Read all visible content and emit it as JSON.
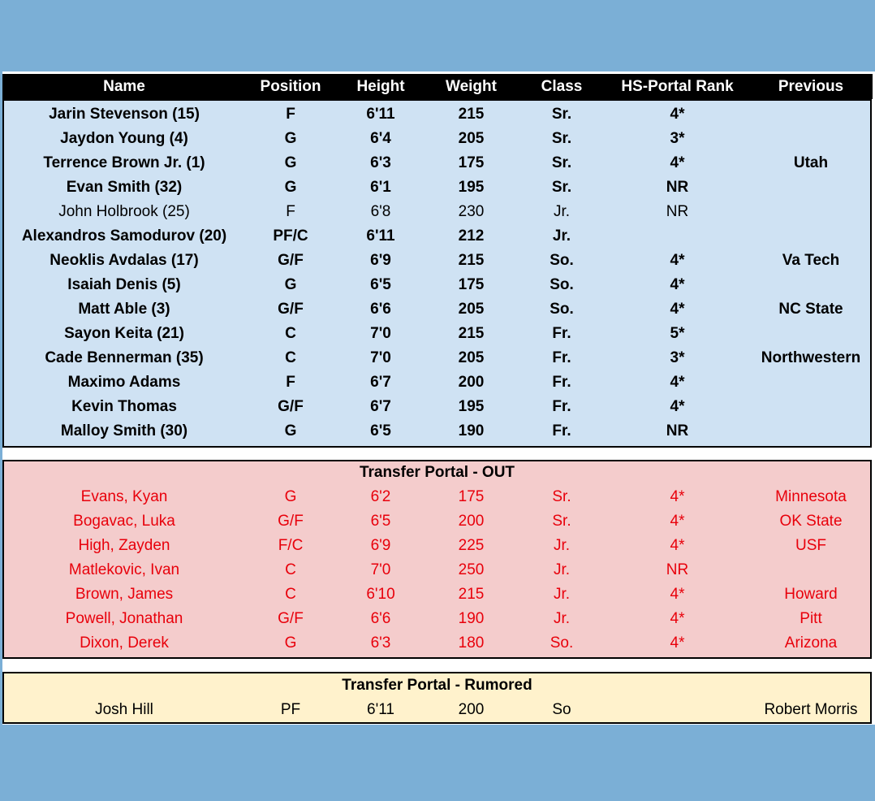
{
  "table": {
    "columns": [
      "Name",
      "Position",
      "Height",
      "Weight",
      "Class",
      "HS-Portal Rank",
      "Previous"
    ],
    "roster": {
      "rows": [
        {
          "cells": [
            "Jarin Stevenson (15)",
            "F",
            "6'11",
            "215",
            "Sr.",
            "4*",
            null
          ]
        },
        {
          "cells": [
            "Jaydon Young (4)",
            "G",
            "6'4",
            "205",
            "Sr.",
            "3*",
            null
          ]
        },
        {
          "cells": [
            "Terrence Brown Jr. (1)",
            "G",
            "6'3",
            "175",
            "Sr.",
            "4*",
            "Utah"
          ]
        },
        {
          "cells": [
            "Evan Smith (32)",
            "G",
            "6'1",
            "195",
            "Sr.",
            "NR",
            null
          ]
        },
        {
          "cells": [
            "John Holbrook (25)",
            "F",
            "6'8",
            "230",
            "Jr.",
            "NR",
            null
          ],
          "bold": false
        },
        {
          "cells": [
            "Alexandros Samodurov (20)",
            "PF/C",
            "6'11",
            "212",
            "Jr.",
            null,
            null
          ]
        },
        {
          "cells": [
            "Neoklis Avdalas (17)",
            "G/F",
            "6'9",
            "215",
            "So.",
            "4*",
            "Va Tech"
          ]
        },
        {
          "cells": [
            "Isaiah Denis (5)",
            "G",
            "6'5",
            "175",
            "So.",
            "4*",
            null
          ]
        },
        {
          "cells": [
            "Matt Able (3)",
            "G/F",
            "6'6",
            "205",
            "So.",
            "4*",
            "NC State"
          ]
        },
        {
          "cells": [
            "Sayon Keita (21)",
            "C",
            "7'0",
            "215",
            "Fr.",
            "5*",
            null
          ]
        },
        {
          "cells": [
            "Cade Bennerman (35)",
            "C",
            "7'0",
            "205",
            "Fr.",
            "3*",
            "Northwestern"
          ]
        },
        {
          "cells": [
            "Maximo Adams",
            "F",
            "6'7",
            "200",
            "Fr.",
            "4*",
            null
          ]
        },
        {
          "cells": [
            "Kevin Thomas",
            "G/F",
            "6'7",
            "195",
            "Fr.",
            "4*",
            null
          ]
        },
        {
          "cells": [
            "Malloy Smith (30)",
            "G",
            "6'5",
            "190",
            "Fr.",
            "NR",
            null
          ]
        }
      ]
    },
    "portal_out": {
      "title": "Transfer Portal - OUT",
      "rows": [
        {
          "cells": [
            "Evans, Kyan",
            "G",
            "6'2",
            "175",
            "Sr.",
            "4*",
            "Minnesota"
          ]
        },
        {
          "cells": [
            "Bogavac, Luka",
            "G/F",
            "6'5",
            "200",
            "Sr.",
            "4*",
            "OK State"
          ]
        },
        {
          "cells": [
            "High, Zayden",
            "F/C",
            "6'9",
            "225",
            "Jr.",
            "4*",
            "USF"
          ]
        },
        {
          "cells": [
            "Matlekovic, Ivan",
            "C",
            "7'0",
            "250",
            "Jr.",
            "NR",
            null
          ]
        },
        {
          "cells": [
            "Brown, James",
            "C",
            "6'10",
            "215",
            "Jr.",
            "4*",
            "Howard"
          ]
        },
        {
          "cells": [
            "Powell, Jonathan",
            "G/F",
            "6'6",
            "190",
            "Jr.",
            "4*",
            "Pitt"
          ]
        },
        {
          "cells": [
            "Dixon, Derek",
            "G",
            "6'3",
            "180",
            "So.",
            "4*",
            "Arizona"
          ]
        }
      ]
    },
    "portal_rumored": {
      "title": "Transfer Portal - Rumored",
      "rows": [
        {
          "cells": [
            "Josh Hill",
            "PF",
            "6'11",
            "200",
            "So",
            null,
            "Robert Morris"
          ]
        }
      ]
    }
  }
}
